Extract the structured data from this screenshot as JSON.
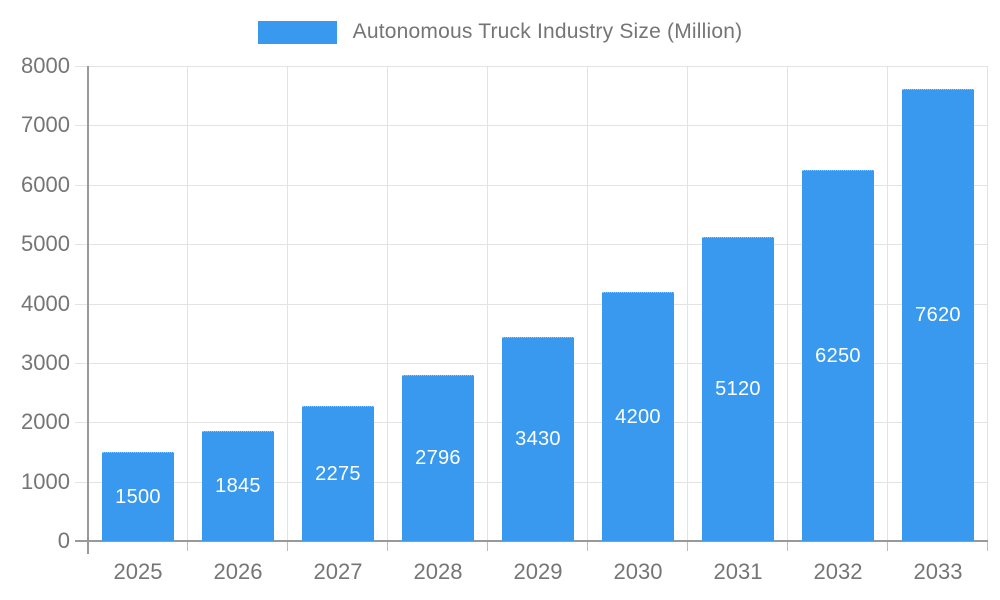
{
  "legend": {
    "label": "Autonomous Truck Industry Size (Million)"
  },
  "colors": {
    "bar": "#3899ee",
    "axis": "#999999",
    "grid": "#e3e3e3",
    "tick": "#bbbbbb",
    "tick_label": "#757575",
    "value_label": "#ffffff"
  },
  "chart_data": {
    "type": "bar",
    "title": "Autonomous Truck Industry Size (Million)",
    "categories": [
      "2025",
      "2026",
      "2027",
      "2028",
      "2029",
      "2030",
      "2031",
      "2032",
      "2033"
    ],
    "values": [
      1500,
      1845,
      2275,
      2796,
      3430,
      4200,
      5120,
      6250,
      7620
    ],
    "xlabel": "",
    "ylabel": "",
    "ylim": [
      0,
      8000
    ],
    "ytick_interval": 1000,
    "ytick_labels": [
      "0",
      "1000",
      "2000",
      "3000",
      "4000",
      "5000",
      "6000",
      "7000",
      "8000"
    ],
    "grid": true,
    "legend_position": "top",
    "value_labels": "inside-center"
  }
}
